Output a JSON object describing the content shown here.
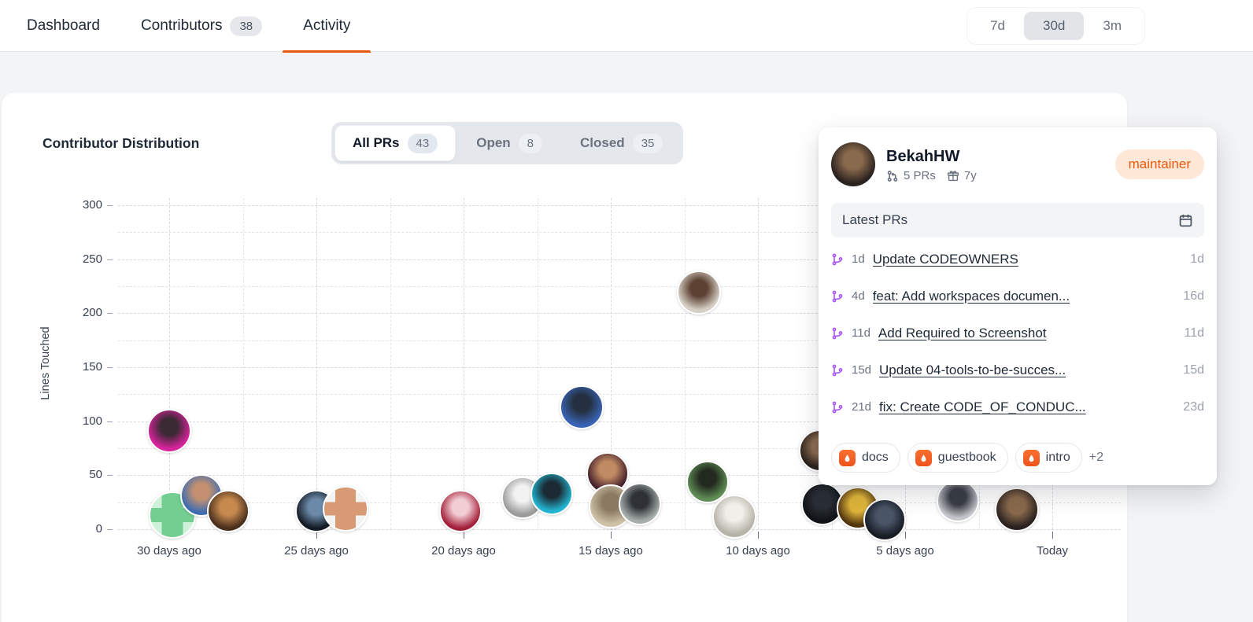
{
  "header": {
    "nav": [
      {
        "label": "Dashboard"
      },
      {
        "label": "Contributors",
        "count": "38"
      },
      {
        "label": "Activity",
        "active": true
      }
    ],
    "range": {
      "options": [
        "7d",
        "30d",
        "3m"
      ],
      "selected": "30d"
    }
  },
  "card": {
    "title": "Contributor Distribution",
    "filters": [
      {
        "label": "All PRs",
        "count": "43",
        "active": true
      },
      {
        "label": "Open",
        "count": "8",
        "active": false
      },
      {
        "label": "Closed",
        "count": "35",
        "active": false
      }
    ]
  },
  "chart_data": {
    "type": "scatter",
    "title": "Contributor Distribution",
    "xlabel": "",
    "ylabel": "Lines Touched",
    "x_ticks": [
      "30 days ago",
      "25 days ago",
      "20 days ago",
      "15 days ago",
      "10 days ago",
      "5 days ago",
      "Today"
    ],
    "y_ticks": [
      0,
      50,
      100,
      150,
      200,
      250,
      300
    ],
    "ylim": [
      0,
      300
    ],
    "xlim_days_ago": [
      30,
      0
    ],
    "grid": true,
    "marker": "contributor-avatar",
    "points": [
      {
        "days_ago": 30.0,
        "lines": 91,
        "style": "photo",
        "c1": "#3a2a33",
        "c2": "#d6239b",
        "r": 28
      },
      {
        "days_ago": 29.9,
        "lines": 13,
        "style": "identicon",
        "c1": "#74ce92",
        "c2": "#cdf1d9",
        "r": 30
      },
      {
        "days_ago": 28.9,
        "lines": 31,
        "style": "photo",
        "c1": "#c29070",
        "c2": "#3f6cb0",
        "r": 27
      },
      {
        "days_ago": 28.0,
        "lines": 17,
        "style": "photo",
        "c1": "#c78a4e",
        "c2": "#4a2f1d",
        "r": 27
      },
      {
        "days_ago": 25.0,
        "lines": 17,
        "style": "photo",
        "c1": "#6b89a8",
        "c2": "#131a24",
        "r": 27
      },
      {
        "days_ago": 24.0,
        "lines": 19,
        "style": "identicon",
        "c1": "#d89a74",
        "c2": "#f3f4f1",
        "r": 29
      },
      {
        "days_ago": 20.1,
        "lines": 17,
        "style": "photo",
        "c1": "#f2cdd3",
        "c2": "#a3203a",
        "r": 27
      },
      {
        "days_ago": 18.0,
        "lines": 29,
        "style": "photo",
        "c1": "#f2f2f2",
        "c2": "#9a9a9a",
        "r": 27
      },
      {
        "days_ago": 17.0,
        "lines": 33,
        "style": "photo",
        "c1": "#1b2a33",
        "c2": "#22b3cf",
        "r": 27
      },
      {
        "days_ago": 16.0,
        "lines": 113,
        "style": "photo",
        "c1": "#24303f",
        "c2": "#3a63b5",
        "r": 28
      },
      {
        "days_ago": 15.1,
        "lines": 52,
        "style": "photo",
        "c1": "#c08a62",
        "c2": "#45202c",
        "r": 27
      },
      {
        "days_ago": 15.0,
        "lines": 21,
        "style": "photo",
        "c1": "#8a7a62",
        "c2": "#cfc0a8",
        "r": 28
      },
      {
        "days_ago": 14.0,
        "lines": 23,
        "style": "photo",
        "c1": "#2e3236",
        "c2": "#a8aeab",
        "r": 27
      },
      {
        "days_ago": 12.0,
        "lines": 219,
        "style": "photo",
        "c1": "#5d4233",
        "c2": "#d6cfc5",
        "r": 28
      },
      {
        "days_ago": 11.7,
        "lines": 44,
        "style": "photo",
        "c1": "#22291e",
        "c2": "#5f8d55",
        "r": 27
      },
      {
        "days_ago": 10.8,
        "lines": 12,
        "style": "photo",
        "c1": "#f0efe9",
        "c2": "#b5b2a8",
        "r": 28
      },
      {
        "days_ago": 7.9,
        "lines": 73,
        "style": "photo",
        "c1": "#8a6a50",
        "c2": "#2a211c",
        "r": 27
      },
      {
        "days_ago": 7.8,
        "lines": 23,
        "style": "photo",
        "c1": "#2a2f36",
        "c2": "#101316",
        "r": 27
      },
      {
        "days_ago": 6.6,
        "lines": 20,
        "style": "photo",
        "c1": "#e0b63a",
        "c2": "#52350f",
        "r": 27
      },
      {
        "days_ago": 5.7,
        "lines": 9,
        "style": "photo",
        "c1": "#4a5568",
        "c2": "#181c24",
        "r": 27
      },
      {
        "days_ago": 3.2,
        "lines": 26,
        "style": "photo",
        "c1": "#3a3d46",
        "c2": "#c5c7cc",
        "r": 27
      },
      {
        "days_ago": 1.2,
        "lines": 18,
        "style": "photo",
        "c1": "#8a6a4c",
        "c2": "#2a2220",
        "r": 28
      }
    ]
  },
  "tooltip": {
    "name": "BekahHW",
    "prs": "5 PRs",
    "tenure": "7y",
    "role": "maintainer",
    "section_title": "Latest PRs",
    "prs_list": [
      {
        "age": "1d",
        "title": "Update CODEOWNERS",
        "merged": "1d"
      },
      {
        "age": "4d",
        "title": "feat: Add workspaces documen...",
        "merged": "16d"
      },
      {
        "age": "11d",
        "title": "Add Required to Screenshot",
        "merged": "11d"
      },
      {
        "age": "15d",
        "title": "Update 04-tools-to-be-succes...",
        "merged": "15d"
      },
      {
        "age": "21d",
        "title": "fix: Create CODE_OF_CONDUC...",
        "merged": "23d"
      }
    ],
    "repos": [
      "docs",
      "guestbook",
      "intro"
    ],
    "more_repos": "+2"
  },
  "colors": {
    "accent": "#ea580c",
    "role_badge_bg": "#ffe8d8",
    "merge_icon": "#a855f7",
    "repo_logo": "#ee5a1f",
    "grid_line": "#d7dadf",
    "page_bg": "#f3f4f6"
  }
}
